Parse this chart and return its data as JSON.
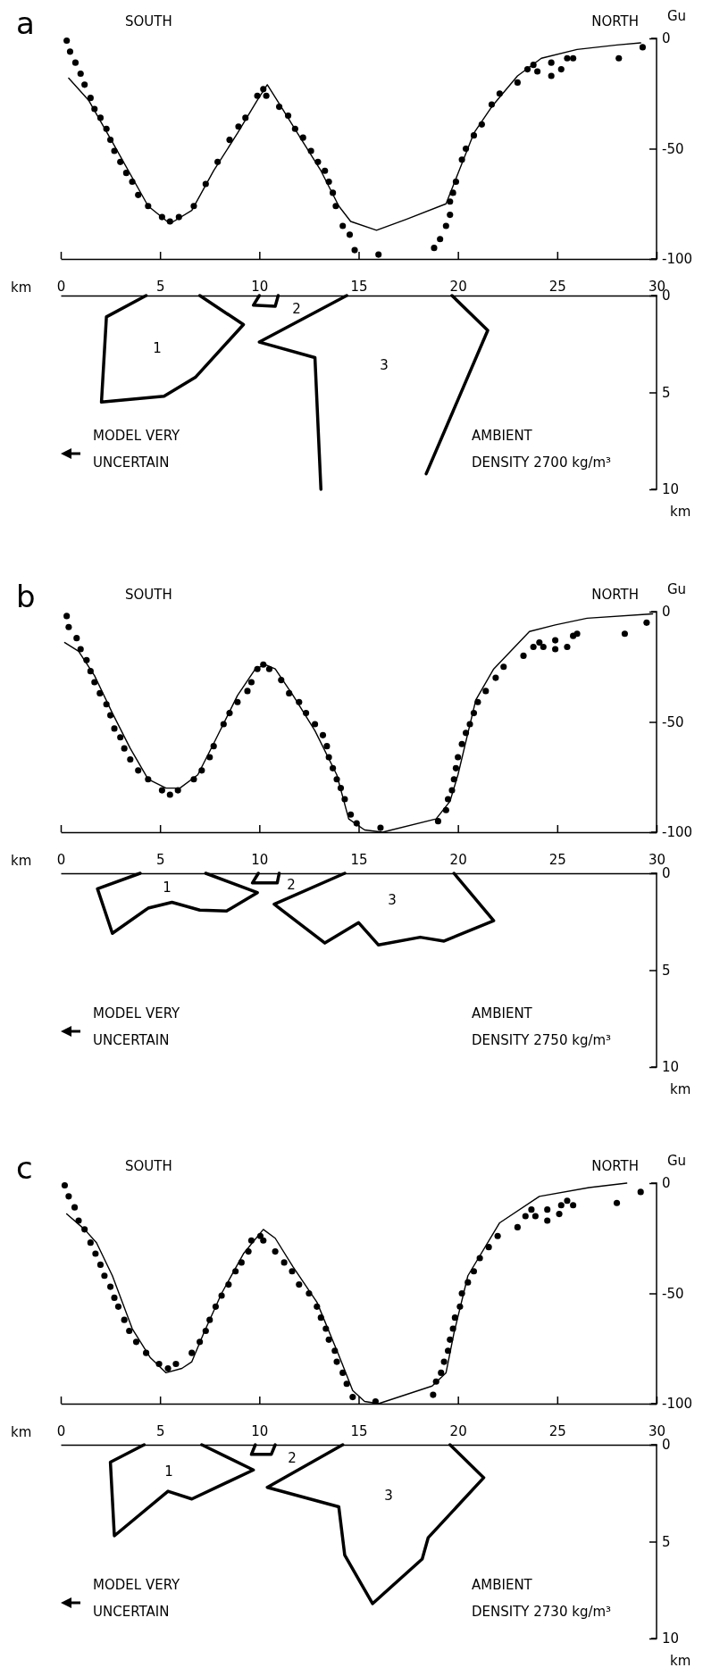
{
  "chart_data": [
    {
      "type": "scatter",
      "title": "a",
      "xlabel": "km",
      "ylabel": "Gu",
      "annotations": [
        "SOUTH",
        "NORTH"
      ],
      "xlim": [
        0,
        30
      ],
      "xticks": [
        0,
        5,
        10,
        15,
        20,
        25,
        30
      ],
      "ylim": [
        -100,
        0
      ],
      "yticks": [
        0,
        -50,
        -100
      ],
      "line_style": "solid",
      "series": [
        {
          "type": "line",
          "marker": "none",
          "color": "#000000",
          "x": [
            0.4,
            1.4,
            2.6,
            4.4,
            5.5,
            6.6,
            7.7,
            8.9,
            9.9,
            10.4,
            11.1,
            12.2,
            13.1,
            14.0,
            14.6,
            15.9,
            17.4,
            19.4,
            20.1,
            20.8,
            21.7,
            23.0,
            24.2,
            26.0,
            28.0,
            29.2
          ],
          "values": [
            -18,
            -28,
            -47,
            -76,
            -84,
            -78,
            -60,
            -43,
            -28,
            -21,
            -31,
            -47,
            -60,
            -76,
            -83,
            -87,
            -82,
            -75,
            -59,
            -43,
            -31,
            -17,
            -9,
            -5,
            -3,
            -2
          ]
        },
        {
          "type": "scatter",
          "marker": "circle",
          "color": "#000000",
          "x": [
            0.3,
            0.47,
            0.74,
            1.0,
            1.2,
            1.5,
            1.7,
            2.0,
            2.3,
            2.5,
            2.7,
            3.0,
            3.3,
            3.6,
            3.9,
            4.4,
            5.1,
            5.5,
            5.95,
            6.7,
            7.3,
            7.9,
            8.5,
            8.95,
            9.3,
            9.9,
            10.2,
            10.35,
            11.0,
            11.45,
            11.8,
            12.2,
            12.6,
            12.95,
            13.3,
            13.5,
            13.7,
            13.85,
            14.2,
            14.55,
            14.8,
            16.0,
            18.8,
            19.1,
            19.4,
            19.6,
            19.6,
            19.75,
            19.9,
            20.2,
            20.4,
            20.8,
            21.2,
            21.7,
            22.1,
            23.0,
            23.5,
            23.8,
            24.0,
            24.7,
            24.7,
            25.2,
            25.5,
            25.8,
            28.1,
            29.3
          ],
          "values": [
            -1,
            -6,
            -11,
            -16,
            -21,
            -27,
            -32,
            -36,
            -41,
            -46,
            -51,
            -56,
            -61,
            -65,
            -71,
            -76,
            -81,
            -83,
            -81,
            -76,
            -66,
            -56,
            -46,
            -40,
            -36,
            -26,
            -23,
            -26,
            -31,
            -35,
            -41,
            -45,
            -51,
            -56,
            -60,
            -65,
            -70,
            -76,
            -85,
            -89,
            -96,
            -98,
            -95,
            -91,
            -85,
            -80,
            -74,
            -70,
            -65,
            -55,
            -50,
            -44,
            -39,
            -30,
            -25,
            -20,
            -14,
            -12,
            -15,
            -11,
            -17,
            -14,
            -9,
            -9,
            -9,
            -4
          ]
        }
      ]
    },
    {
      "type": "line",
      "ylabel": "km",
      "annotations": [
        "MODEL VERY",
        "UNCERTAIN",
        "AMBIENT",
        "DENSITY 2700 kg/m³",
        "1",
        "2",
        "3"
      ],
      "xlim": [
        0,
        30
      ],
      "ylim": [
        10,
        0
      ],
      "yticks": [
        0,
        5,
        10
      ],
      "tick_labels": "y",
      "line_style": "solid",
      "series": [
        {
          "color": "#000000",
          "x": [
            4.3,
            2.3,
            2.05,
            5.2,
            6.8,
            9.2,
            7.0
          ],
          "values": [
            0,
            1.1,
            5.5,
            5.2,
            4.2,
            1.5,
            0
          ]
        },
        {
          "color": "#000000",
          "x": [
            10.0,
            9.7,
            10.8,
            10.95
          ],
          "values": [
            0,
            0.5,
            0.55,
            0
          ]
        },
        {
          "color": "#000000",
          "x": [
            14.4,
            10.0,
            12.8,
            13.1
          ],
          "values": [
            0,
            2.4,
            3.2,
            10
          ]
        },
        {
          "color": "#000000",
          "x": [
            19.7,
            21.5,
            18.4
          ],
          "values": [
            0,
            1.8,
            9.2
          ]
        }
      ]
    },
    {
      "type": "scatter",
      "title": "b",
      "xlabel": "km",
      "ylabel": "Gu",
      "annotations": [
        "SOUTH",
        "NORTH"
      ],
      "xlim": [
        0,
        30
      ],
      "xticks": [
        0,
        5,
        10,
        15,
        20,
        25,
        30
      ],
      "ylim": [
        -100,
        0
      ],
      "yticks": [
        0,
        -50,
        -100
      ],
      "line_style": "solid",
      "series": [
        {
          "type": "line",
          "marker": "none",
          "color": "#000000",
          "x": [
            0.2,
            0.9,
            1.7,
            2.6,
            3.5,
            4.4,
            5.3,
            6.0,
            6.9,
            7.8,
            8.9,
            9.8,
            10.3,
            10.8,
            11.7,
            12.8,
            13.9,
            14.5,
            15.3,
            16.2,
            18.9,
            19.6,
            20.0,
            20.9,
            21.8,
            23.6,
            24.9,
            26.5,
            29.8
          ],
          "values": [
            -14,
            -18,
            -29,
            -46,
            -62,
            -76,
            -80,
            -80,
            -74,
            -58,
            -38,
            -26,
            -24,
            -26,
            -38,
            -54,
            -74,
            -94,
            -99,
            -100,
            -94,
            -86,
            -74,
            -40,
            -26,
            -9,
            -6,
            -3,
            -1
          ]
        },
        {
          "type": "scatter",
          "marker": "circle",
          "color": "#000000",
          "x": [
            0.3,
            0.4,
            0.8,
            1.0,
            1.3,
            1.5,
            1.7,
            1.97,
            2.3,
            2.5,
            2.7,
            3.0,
            3.2,
            3.5,
            3.9,
            4.4,
            5.1,
            5.5,
            5.9,
            6.7,
            7.1,
            7.5,
            7.7,
            8.2,
            8.5,
            8.9,
            9.4,
            9.6,
            9.9,
            10.2,
            10.5,
            11.1,
            11.5,
            12.0,
            12.35,
            12.8,
            13.2,
            13.4,
            13.5,
            13.7,
            13.9,
            14.1,
            14.3,
            14.6,
            14.9,
            16.1,
            19.0,
            19.4,
            19.5,
            19.7,
            19.8,
            19.9,
            20.0,
            20.2,
            20.4,
            20.6,
            20.8,
            21.0,
            21.4,
            21.9,
            22.3,
            23.3,
            23.8,
            24.1,
            24.3,
            24.9,
            24.9,
            25.5,
            25.8,
            26.0,
            28.4,
            29.5
          ],
          "values": [
            -2,
            -7,
            -12,
            -17,
            -22,
            -27,
            -32,
            -37,
            -42,
            -47,
            -53,
            -57,
            -62,
            -67,
            -72,
            -76,
            -81,
            -83,
            -81,
            -76,
            -72,
            -66,
            -61,
            -51,
            -46,
            -41,
            -36,
            -32,
            -26,
            -24,
            -26,
            -31,
            -37,
            -41,
            -46,
            -51,
            -56,
            -61,
            -66,
            -71,
            -76,
            -80,
            -85,
            -92,
            -96,
            -98,
            -95,
            -90,
            -85,
            -81,
            -76,
            -71,
            -66,
            -60,
            -55,
            -51,
            -46,
            -41,
            -36,
            -30,
            -25,
            -20,
            -16,
            -14,
            -16,
            -13,
            -17,
            -16,
            -11,
            -10,
            -10,
            -5
          ]
        }
      ]
    },
    {
      "type": "line",
      "ylabel": "km",
      "annotations": [
        "MODEL VERY",
        "UNCERTAIN",
        "AMBIENT",
        "DENSITY 2750 kg/m³",
        "1",
        "2",
        "3"
      ],
      "xlim": [
        0,
        30
      ],
      "ylim": [
        10,
        0
      ],
      "yticks": [
        0,
        5,
        10
      ],
      "tick_labels": "y",
      "line_style": "solid",
      "series": [
        {
          "color": "#000000",
          "x": [
            4.0,
            1.85,
            2.6,
            4.4,
            5.6,
            7.0,
            8.35,
            9.9,
            7.3
          ],
          "values": [
            0,
            0.8,
            3.1,
            1.8,
            1.5,
            1.9,
            1.95,
            1.0,
            0
          ]
        },
        {
          "color": "#000000",
          "x": [
            9.95,
            9.65,
            10.9,
            11.0
          ],
          "values": [
            0,
            0.5,
            0.5,
            0
          ]
        },
        {
          "color": "#000000",
          "x": [
            14.3,
            10.75,
            13.3,
            15.0,
            16.0,
            18.1,
            19.3,
            21.8,
            19.8
          ],
          "values": [
            0,
            1.6,
            3.6,
            2.55,
            3.7,
            3.3,
            3.5,
            2.45,
            0
          ]
        }
      ]
    },
    {
      "type": "scatter",
      "title": "c",
      "xlabel": "km",
      "ylabel": "Gu",
      "annotations": [
        "SOUTH",
        "NORTH"
      ],
      "xlim": [
        0,
        30
      ],
      "xticks": [
        0,
        5,
        10,
        15,
        20,
        25,
        30
      ],
      "ylim": [
        -100,
        0
      ],
      "yticks": [
        0,
        -50,
        -100
      ],
      "line_style": "solid",
      "series": [
        {
          "type": "line",
          "marker": "none",
          "color": "#000000",
          "x": [
            0.3,
            1.2,
            1.8,
            2.6,
            3.6,
            4.5,
            5.3,
            6.1,
            6.6,
            7.2,
            8.1,
            9.2,
            10.2,
            10.8,
            11.7,
            12.9,
            14.0,
            14.7,
            15.3,
            16.0,
            18.7,
            19.4,
            19.8,
            20.5,
            22.1,
            24.1,
            26.6,
            28.5
          ],
          "values": [
            -14,
            -21,
            -27,
            -42,
            -66,
            -79,
            -86,
            -84,
            -81,
            -68,
            -50,
            -32,
            -21,
            -25,
            -38,
            -54,
            -78,
            -94,
            -99,
            -100,
            -92,
            -86,
            -68,
            -42,
            -18,
            -6,
            -2,
            0
          ]
        },
        {
          "type": "scatter",
          "marker": "circle",
          "color": "#000000",
          "x": [
            0.2,
            0.4,
            0.7,
            0.9,
            1.2,
            1.5,
            1.75,
            2.0,
            2.2,
            2.5,
            2.7,
            2.9,
            3.2,
            3.45,
            3.8,
            4.3,
            4.95,
            5.4,
            5.8,
            6.6,
            7.0,
            7.3,
            7.5,
            7.8,
            8.1,
            8.45,
            8.8,
            9.1,
            9.45,
            9.6,
            10.05,
            10.2,
            10.8,
            11.25,
            11.65,
            12.0,
            12.5,
            12.9,
            13.1,
            13.35,
            13.5,
            13.8,
            13.9,
            14.2,
            14.4,
            14.7,
            15.85,
            18.75,
            18.9,
            19.15,
            19.3,
            19.5,
            19.6,
            19.75,
            19.85,
            20.1,
            20.2,
            20.5,
            20.8,
            21.1,
            21.55,
            22.0,
            23.0,
            23.4,
            23.7,
            23.9,
            24.5,
            24.5,
            25.1,
            25.2,
            25.5,
            25.8,
            28.0,
            29.2
          ],
          "values": [
            -1,
            -6,
            -11,
            -17,
            -21,
            -27,
            -32,
            -37,
            -42,
            -47,
            -52,
            -56,
            -62,
            -67,
            -72,
            -77,
            -82,
            -84,
            -82,
            -77,
            -72,
            -67,
            -62,
            -56,
            -51,
            -46,
            -40,
            -36,
            -31,
            -26,
            -24,
            -26,
            -31,
            -36,
            -40,
            -46,
            -50,
            -56,
            -61,
            -66,
            -71,
            -76,
            -81,
            -86,
            -91,
            -97,
            -99,
            -96,
            -90,
            -86,
            -81,
            -76,
            -71,
            -66,
            -61,
            -56,
            -50,
            -45,
            -40,
            -34,
            -29,
            -24,
            -20,
            -15,
            -12,
            -15,
            -12,
            -17,
            -14,
            -10,
            -8,
            -10,
            -9,
            -4
          ]
        }
      ]
    },
    {
      "type": "line",
      "ylabel": "km",
      "annotations": [
        "MODEL VERY",
        "UNCERTAIN",
        "AMBIENT",
        "DENSITY 2730 kg/m³",
        "1",
        "2",
        "3"
      ],
      "xlim": [
        0,
        30
      ],
      "ylim": [
        10,
        0
      ],
      "yticks": [
        0,
        5,
        10
      ],
      "tick_labels": "y",
      "line_style": "solid",
      "series": [
        {
          "color": "#000000",
          "x": [
            4.2,
            2.5,
            2.7,
            5.4,
            6.6,
            9.7,
            7.1
          ],
          "values": [
            0,
            0.9,
            4.7,
            2.4,
            2.8,
            1.3,
            0
          ]
        },
        {
          "color": "#000000",
          "x": [
            9.8,
            9.6,
            10.6,
            10.8
          ],
          "values": [
            0,
            0.5,
            0.5,
            0
          ]
        },
        {
          "color": "#000000",
          "x": [
            14.2,
            10.4,
            14.0,
            14.3,
            15.7,
            18.2,
            18.5,
            21.3,
            19.6
          ],
          "values": [
            0,
            2.2,
            3.2,
            5.7,
            8.2,
            5.9,
            4.8,
            1.7,
            0
          ]
        }
      ]
    }
  ]
}
